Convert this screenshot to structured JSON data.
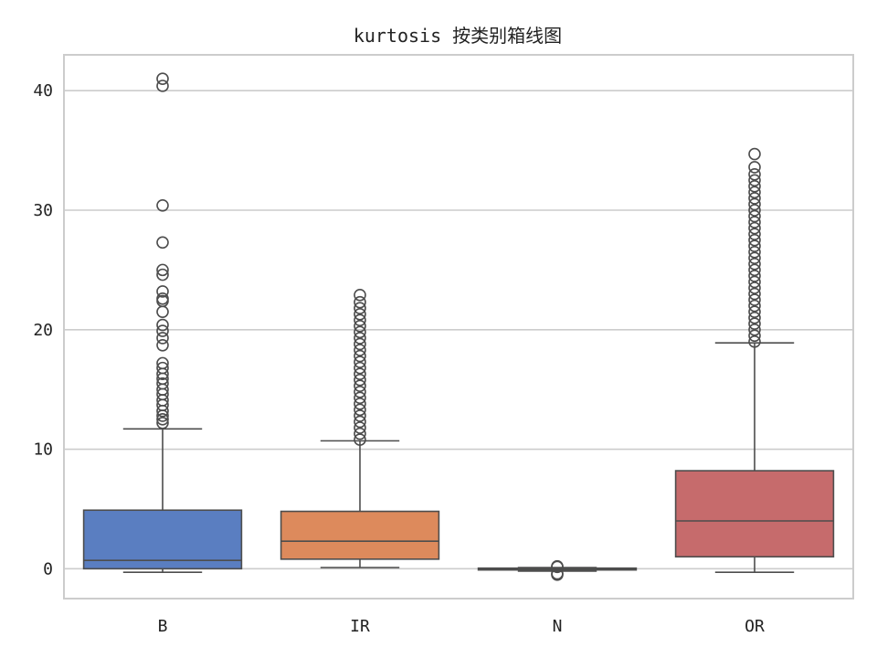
{
  "chart_data": {
    "type": "box",
    "title": "kurtosis 按类别箱线图",
    "xlabel": "",
    "ylabel": "",
    "ylim": [
      -2.5,
      43
    ],
    "yticks": [
      0,
      10,
      20,
      30,
      40
    ],
    "grid": "horizontal",
    "categories": [
      "B",
      "IR",
      "N",
      "OR"
    ],
    "colors": [
      "#5a7ec1",
      "#dd8a5c",
      "#5f9e6e",
      "#c66b6c"
    ],
    "boxes": [
      {
        "category": "B",
        "whisker_low": -0.3,
        "q1": 0.0,
        "median": 0.7,
        "q3": 4.9,
        "whisker_high": 11.7,
        "outliers": [
          12.2,
          12.5,
          12.8,
          13.2,
          13.7,
          14.1,
          14.6,
          15.0,
          15.5,
          15.9,
          16.3,
          16.8,
          17.2,
          18.7,
          19.3,
          19.9,
          20.4,
          21.5,
          22.4,
          22.6,
          23.2,
          24.6,
          25.0,
          27.3,
          30.4,
          40.4,
          41.0
        ]
      },
      {
        "category": "IR",
        "whisker_low": 0.1,
        "q1": 0.8,
        "median": 2.3,
        "q3": 4.8,
        "whisker_high": 10.7,
        "outliers": [
          10.8,
          11.3,
          11.8,
          12.3,
          12.8,
          13.3,
          13.8,
          14.3,
          14.8,
          15.3,
          15.8,
          16.3,
          16.8,
          17.3,
          17.8,
          18.3,
          18.8,
          19.3,
          19.8,
          20.3,
          20.8,
          21.3,
          21.8,
          22.3,
          22.9
        ]
      },
      {
        "category": "N",
        "whisker_low": -0.2,
        "q1": -0.1,
        "median": -0.05,
        "q3": 0.05,
        "whisker_high": 0.1,
        "outliers": [
          -0.5,
          -0.4,
          0.15,
          0.2
        ]
      },
      {
        "category": "OR",
        "whisker_low": -0.3,
        "q1": 1.0,
        "median": 4.0,
        "q3": 8.2,
        "whisker_high": 18.9,
        "outliers": [
          19.0,
          19.5,
          20.0,
          20.5,
          21.0,
          21.5,
          22.0,
          22.5,
          23.0,
          23.5,
          24.0,
          24.5,
          25.0,
          25.5,
          26.0,
          26.5,
          27.0,
          27.5,
          28.0,
          28.5,
          29.0,
          29.5,
          30.0,
          30.5,
          31.0,
          31.5,
          32.0,
          32.5,
          33.0,
          33.6,
          34.7
        ]
      }
    ]
  }
}
